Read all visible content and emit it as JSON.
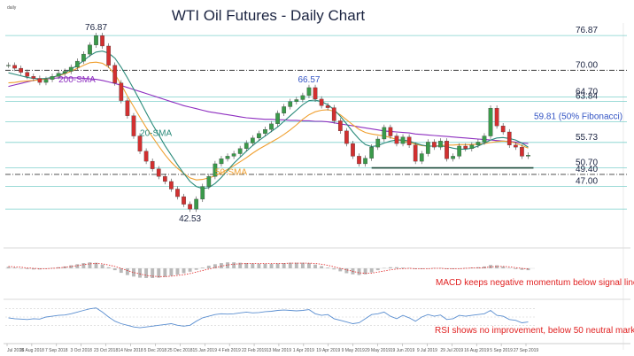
{
  "chart_data": {
    "type": "candlestick",
    "title": "WTI Oil Futures - Daily Chart",
    "y_axis_unit": "daily",
    "ylim": [
      38,
      79
    ],
    "x_ticks": [
      "Jul 2018",
      "26 Aug 2018",
      "7 Sep 2018",
      "3 Oct 2018",
      "23 Oct 2018",
      "14 Nov 2018",
      "5 Dec 2018",
      "25 Dec 2018",
      "15 Jan 2019",
      "4 Feb 2019",
      "22 Feb 2019",
      "13 Mar 2019",
      "1 Apr 2019",
      "19 Apr 2019",
      "9 May 2019",
      "29 May 2019",
      "19 Jun 2019",
      "9 Jul 2019",
      "29 Jul 2019",
      "16 Aug 2019",
      "5 Sep 2019",
      "27 Sep 2019"
    ],
    "price": [
      71.0,
      70.4,
      69.6,
      68.8,
      68.4,
      67.6,
      68.2,
      68.8,
      69.4,
      69.8,
      70.6,
      71.8,
      73.2,
      75.0,
      76.87,
      74.8,
      71.0,
      67.5,
      64.0,
      61.0,
      57.0,
      54.0,
      52.0,
      50.5,
      49.0,
      48.0,
      46.5,
      45.0,
      43.5,
      42.53,
      44.5,
      47.0,
      49.0,
      51.5,
      52.5,
      53.0,
      53.5,
      54.5,
      55.6,
      56.6,
      57.5,
      58.3,
      59.4,
      61.5,
      62.8,
      63.8,
      64.2,
      65.0,
      66.57,
      64.3,
      63.0,
      62.6,
      60.0,
      58.0,
      55.5,
      53.0,
      51.5,
      52.6,
      54.8,
      56.4,
      58.7,
      57.0,
      55.5,
      56.8,
      55.2,
      52.0,
      53.5,
      55.8,
      54.8,
      56.0,
      52.5,
      53.0,
      55.0,
      54.5,
      55.2,
      55.8,
      57.0,
      62.5,
      59.0,
      57.8,
      55.2,
      54.8,
      53.0,
      53.2
    ],
    "series": [
      {
        "name": "200-SMA",
        "color": "#8e2fc0",
        "values": [
          66.8,
          67.1,
          67.4,
          67.7,
          68.0,
          68.2,
          68.3,
          68.4,
          68.5,
          68.5,
          68.5,
          68.5,
          68.4,
          68.3,
          68.2,
          68.0,
          67.7,
          67.4,
          67.0,
          66.6,
          66.2,
          65.8,
          65.4,
          65.0,
          64.6,
          64.2,
          63.8,
          63.4,
          63.0,
          62.7,
          62.4,
          62.1,
          61.8,
          61.6,
          61.4,
          61.2,
          61.0,
          60.8,
          60.6,
          60.5,
          60.4,
          60.3,
          60.3,
          60.2,
          60.2,
          60.1,
          60.1,
          60.0,
          60.0,
          59.9,
          59.9,
          59.8,
          59.6,
          59.4,
          59.2,
          59.0,
          58.8,
          58.6,
          58.4,
          58.2,
          58.0,
          57.9,
          57.8,
          57.7,
          57.6,
          57.4,
          57.3,
          57.2,
          57.1,
          57.0,
          56.9,
          56.8,
          56.7,
          56.6,
          56.5,
          56.4,
          56.3,
          56.2,
          56.1,
          56.0,
          55.9,
          55.8,
          55.6,
          55.5
        ]
      },
      {
        "name": "50-SMA",
        "color": "#f0a030",
        "values": [
          67.5,
          67.6,
          67.8,
          67.9,
          68.0,
          68.1,
          68.3,
          68.6,
          68.9,
          69.3,
          69.8,
          70.4,
          71.0,
          71.5,
          71.6,
          71.4,
          70.6,
          69.2,
          67.2,
          64.9,
          62.8,
          60.7,
          58.7,
          56.8,
          55.0,
          53.3,
          51.8,
          50.6,
          49.6,
          48.7,
          48.3,
          48.4,
          48.7,
          49.1,
          49.7,
          50.4,
          51.1,
          51.9,
          52.7,
          53.6,
          54.4,
          55.1,
          55.8,
          56.5,
          57.3,
          58.2,
          59.2,
          60.3,
          61.2,
          61.8,
          62.1,
          62.2,
          61.9,
          61.2,
          60.2,
          59.2,
          58.3,
          57.7,
          57.4,
          57.2,
          57.0,
          56.7,
          56.3,
          56.0,
          55.7,
          55.4,
          55.1,
          55.0,
          55.0,
          55.1,
          55.2,
          55.2,
          55.3,
          55.3,
          55.3,
          55.4,
          55.5,
          55.7,
          55.9,
          56.0,
          55.9,
          55.6,
          55.1,
          54.6
        ]
      },
      {
        "name": "20-SMA",
        "color": "#2a8a7a",
        "values": [
          69.5,
          69.2,
          68.9,
          68.6,
          68.4,
          68.3,
          68.4,
          68.6,
          69.0,
          69.5,
          70.2,
          71.0,
          71.9,
          72.9,
          73.6,
          73.8,
          73.4,
          72.4,
          70.6,
          68.5,
          66.3,
          64.0,
          61.6,
          59.3,
          57.2,
          55.1,
          53.2,
          51.3,
          49.6,
          48.0,
          47.0,
          46.6,
          46.8,
          47.6,
          48.8,
          50.2,
          51.6,
          52.8,
          54.0,
          55.1,
          56.1,
          57.0,
          57.9,
          58.8,
          59.9,
          61.0,
          62.1,
          63.2,
          64.0,
          64.1,
          63.8,
          63.2,
          62.2,
          60.9,
          59.4,
          57.8,
          56.4,
          55.3,
          54.9,
          55.1,
          55.6,
          56.0,
          56.2,
          56.2,
          56.0,
          55.6,
          55.2,
          55.0,
          55.0,
          55.0,
          54.9,
          54.6,
          54.4,
          54.4,
          54.6,
          55.0,
          55.6,
          56.2,
          56.6,
          56.7,
          56.5,
          56.2,
          55.6,
          54.8
        ]
      }
    ],
    "horizontal_levels": [
      {
        "label": "76.87",
        "value": 76.87,
        "style": "solid",
        "color": "#7fd0cc"
      },
      {
        "label": "70.00",
        "value": 70.0,
        "style": "dashdot",
        "color": "#3a3a3a"
      },
      {
        "label": "64.70",
        "value": 64.7,
        "style": "solid",
        "color": "#7fd0cc"
      },
      {
        "label": "63.84",
        "value": 63.84,
        "style": "solid",
        "color": "#7fd0cc"
      },
      {
        "label": "59.81 (50% Fibonacci)",
        "value": 59.81,
        "style": "solid",
        "color": "#7fd0cc"
      },
      {
        "label": "55.73",
        "value": 55.73,
        "style": "solid",
        "color": "#7fd0cc"
      },
      {
        "label": "50.70",
        "value": 50.7,
        "style": "solid",
        "color": "#7fd0cc"
      },
      {
        "label": "49.40",
        "value": 49.4,
        "style": "dashdot",
        "color": "#3a3a3a"
      },
      {
        "label": "47.00",
        "value": 47.0,
        "style": "solid",
        "color": "#7fd0cc"
      },
      {
        "label": "",
        "value": 42.53,
        "style": "solid",
        "color": "#7fd0cc"
      }
    ],
    "support_line": {
      "value": 50.7,
      "from_index": 58,
      "to_index": 83,
      "color": "#1a4a3a"
    },
    "annotations": [
      {
        "text": "76.87",
        "index": 14,
        "value": 76.87,
        "color": "#1a2340"
      },
      {
        "text": "66.57",
        "index": 48,
        "value": 66.57,
        "color": "#3354c4"
      },
      {
        "text": "42.53",
        "index": 29,
        "value": 42.53,
        "color": "#1a2340"
      },
      {
        "text": "200-SMA",
        "index": 8,
        "value": 67.6,
        "color": "#8e2fc0"
      },
      {
        "text": "20-SMA",
        "index": 21,
        "value": 57.0,
        "color": "#2a8a7a"
      },
      {
        "text": "50-SMA",
        "index": 33,
        "value": 49.3,
        "color": "#f0a030"
      }
    ],
    "macd": {
      "label": "MACD keeps negative momentum below signal line",
      "histogram": [
        0.4,
        0.2,
        0.0,
        -0.2,
        -0.3,
        -0.3,
        -0.1,
        0.1,
        0.3,
        0.5,
        0.8,
        1.1,
        1.4,
        1.6,
        1.5,
        1.0,
        0.3,
        -0.5,
        -1.2,
        -1.8,
        -2.2,
        -2.5,
        -2.6,
        -2.6,
        -2.5,
        -2.3,
        -2.0,
        -1.7,
        -1.3,
        -0.9,
        -0.4,
        0.2,
        0.7,
        1.1,
        1.4,
        1.6,
        1.6,
        1.5,
        1.4,
        1.3,
        1.2,
        1.2,
        1.2,
        1.3,
        1.4,
        1.5,
        1.5,
        1.5,
        1.4,
        1.0,
        0.6,
        0.2,
        -0.3,
        -0.8,
        -1.3,
        -1.6,
        -1.8,
        -1.6,
        -1.1,
        -0.5,
        0.1,
        0.3,
        0.3,
        0.2,
        0.1,
        -0.2,
        -0.2,
        0.0,
        0.1,
        0.1,
        -0.2,
        -0.2,
        0.0,
        0.1,
        0.2,
        0.3,
        0.5,
        0.9,
        0.8,
        0.5,
        0.1,
        -0.2,
        -0.4,
        -0.5
      ],
      "signal": [
        0.5,
        0.4,
        0.3,
        0.1,
        0.0,
        -0.1,
        -0.1,
        0.0,
        0.1,
        0.3,
        0.5,
        0.7,
        1.0,
        1.2,
        1.3,
        1.2,
        0.9,
        0.5,
        0.0,
        -0.6,
        -1.1,
        -1.5,
        -1.9,
        -2.1,
        -2.2,
        -2.2,
        -2.1,
        -1.9,
        -1.7,
        -1.4,
        -1.0,
        -0.6,
        -0.2,
        0.2,
        0.6,
        0.9,
        1.1,
        1.2,
        1.3,
        1.3,
        1.3,
        1.3,
        1.3,
        1.3,
        1.3,
        1.4,
        1.4,
        1.4,
        1.4,
        1.3,
        1.1,
        0.8,
        0.4,
        0.0,
        -0.4,
        -0.8,
        -1.2,
        -1.3,
        -1.3,
        -1.0,
        -0.7,
        -0.4,
        -0.2,
        -0.1,
        0.0,
        -0.1,
        -0.1,
        -0.1,
        0.0,
        0.0,
        -0.1,
        -0.1,
        -0.1,
        0.0,
        0.1,
        0.1,
        0.2,
        0.4,
        0.5,
        0.5,
        0.4,
        0.2,
        0.0,
        -0.2
      ]
    },
    "rsi": {
      "label": "RSI shows no improvement, below 50 neutral mark",
      "values": [
        48,
        46,
        45,
        44,
        46,
        45,
        50,
        52,
        54,
        55,
        58,
        62,
        66,
        70,
        72,
        62,
        50,
        40,
        34,
        30,
        26,
        24,
        26,
        28,
        30,
        32,
        34,
        30,
        28,
        30,
        40,
        48,
        52,
        56,
        58,
        57,
        58,
        60,
        62,
        60,
        61,
        63,
        64,
        66,
        67,
        66,
        65,
        66,
        68,
        58,
        54,
        56,
        46,
        42,
        38,
        34,
        36,
        46,
        56,
        58,
        62,
        52,
        46,
        54,
        48,
        40,
        50,
        56,
        52,
        55,
        44,
        46,
        54,
        52,
        54,
        56,
        58,
        66,
        54,
        52,
        44,
        42,
        36,
        38
      ],
      "ylim": [
        20,
        80
      ]
    }
  }
}
